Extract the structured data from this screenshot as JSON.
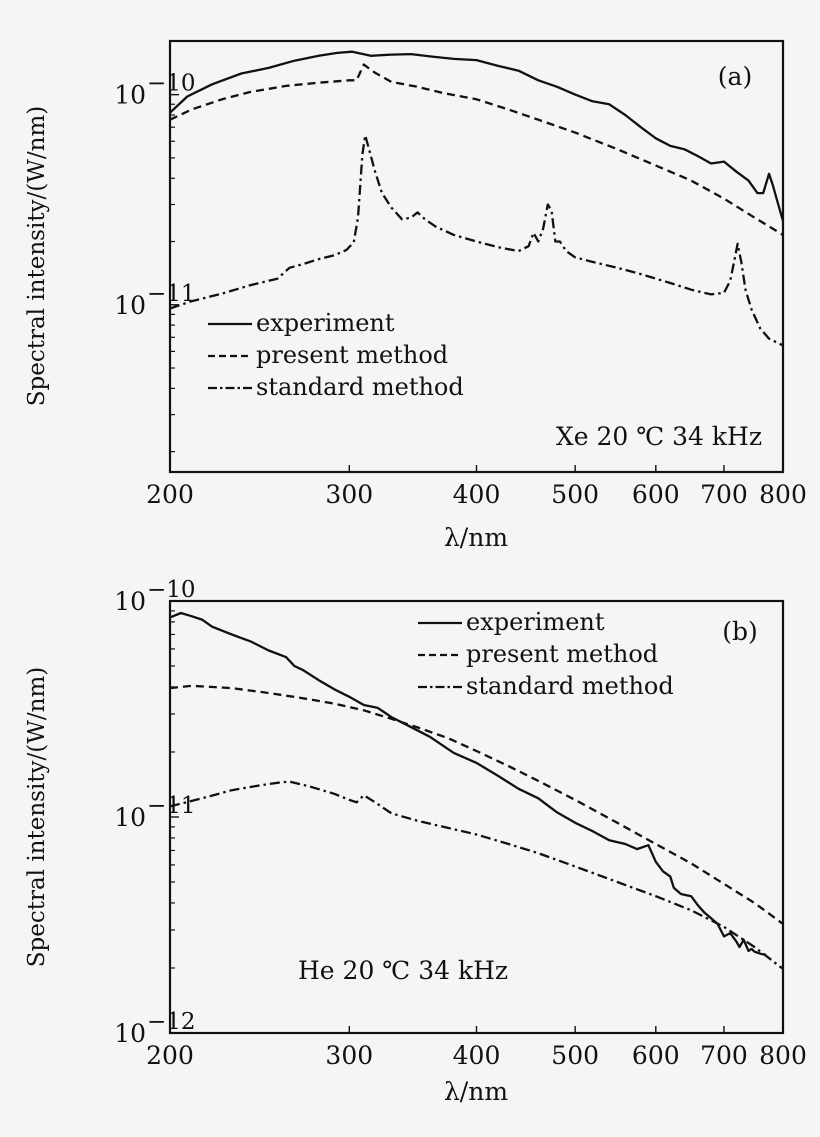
{
  "chart_data": [
    {
      "type": "line",
      "panel_label": "(a)",
      "annotation": "Xe 20 ℃ 34 kHz",
      "xlabel": "λ/nm",
      "ylabel": "Spectral intensity/(W/nm)",
      "xscale": "log",
      "yscale": "log",
      "xlim": [
        200,
        800
      ],
      "ylim": [
        1.6e-12,
        1.8e-10
      ],
      "x_ticks": [
        200,
        300,
        400,
        500,
        600,
        700,
        800
      ],
      "x_tick_labels": [
        "200",
        "300",
        "400",
        "500",
        "600",
        "700",
        "800"
      ],
      "y_ticks": [
        1e-11,
        1e-10
      ],
      "y_tick_labels": [
        {
          "base": "10",
          "exp": "−11"
        },
        {
          "base": "10",
          "exp": "−10"
        }
      ],
      "legend_position": "lower-left",
      "series": [
        {
          "name": "experiment",
          "style": "solid",
          "points": [
            [
              200,
              8.2e-11
            ],
            [
              208,
              9.8e-11
            ],
            [
              220,
              1.12e-10
            ],
            [
              235,
              1.26e-10
            ],
            [
              250,
              1.34e-10
            ],
            [
              265,
              1.45e-10
            ],
            [
              280,
              1.53e-10
            ],
            [
              292,
              1.58e-10
            ],
            [
              302,
              1.6e-10
            ],
            [
              315,
              1.53e-10
            ],
            [
              330,
              1.55e-10
            ],
            [
              345,
              1.56e-10
            ],
            [
              360,
              1.52e-10
            ],
            [
              380,
              1.48e-10
            ],
            [
              400,
              1.46e-10
            ],
            [
              420,
              1.37e-10
            ],
            [
              440,
              1.3e-10
            ],
            [
              460,
              1.17e-10
            ],
            [
              480,
              1.09e-10
            ],
            [
              500,
              1e-10
            ],
            [
              520,
              9.3e-11
            ],
            [
              540,
              9e-11
            ],
            [
              560,
              8e-11
            ],
            [
              580,
              7e-11
            ],
            [
              600,
              6.2e-11
            ],
            [
              620,
              5.7e-11
            ],
            [
              640,
              5.5e-11
            ],
            [
              660,
              5.1e-11
            ],
            [
              680,
              4.7e-11
            ],
            [
              700,
              4.8e-11
            ],
            [
              720,
              4.3e-11
            ],
            [
              740,
              3.9e-11
            ],
            [
              755,
              3.4e-11
            ],
            [
              765,
              3.4e-11
            ],
            [
              775,
              4.2e-11
            ],
            [
              782,
              3.7e-11
            ],
            [
              790,
              3.1e-11
            ],
            [
              800,
              2.5e-11
            ]
          ]
        },
        {
          "name": "present method",
          "style": "dashed",
          "points": [
            [
              200,
              7.6e-11
            ],
            [
              210,
              8.5e-11
            ],
            [
              225,
              9.5e-11
            ],
            [
              240,
              1.03e-10
            ],
            [
              260,
              1.1e-10
            ],
            [
              280,
              1.14e-10
            ],
            [
              300,
              1.17e-10
            ],
            [
              305,
              1.17e-10
            ],
            [
              310,
              1.39e-10
            ],
            [
              318,
              1.27e-10
            ],
            [
              330,
              1.15e-10
            ],
            [
              350,
              1.09e-10
            ],
            [
              370,
              1.02e-10
            ],
            [
              400,
              9.5e-11
            ],
            [
              430,
              8.5e-11
            ],
            [
              460,
              7.6e-11
            ],
            [
              500,
              6.6e-11
            ],
            [
              550,
              5.5e-11
            ],
            [
              600,
              4.6e-11
            ],
            [
              650,
              3.9e-11
            ],
            [
              700,
              3.2e-11
            ],
            [
              750,
              2.6e-11
            ],
            [
              800,
              2.15e-11
            ]
          ]
        },
        {
          "name": "standard method",
          "style": "dashdot",
          "points": [
            [
              200,
              9.6e-12
            ],
            [
              210,
              1.04e-11
            ],
            [
              225,
              1.13e-11
            ],
            [
              240,
              1.24e-11
            ],
            [
              255,
              1.33e-11
            ],
            [
              262,
              1.5e-11
            ],
            [
              270,
              1.56e-11
            ],
            [
              280,
              1.65e-11
            ],
            [
              290,
              1.72e-11
            ],
            [
              298,
              1.82e-11
            ],
            [
              303,
              1.98e-11
            ],
            [
              306,
              2.6e-11
            ],
            [
              309,
              5.2e-11
            ],
            [
              311,
              6.4e-11
            ],
            [
              314,
              5.4e-11
            ],
            [
              318,
              4.3e-11
            ],
            [
              323,
              3.4e-11
            ],
            [
              330,
              2.9e-11
            ],
            [
              338,
              2.55e-11
            ],
            [
              345,
              2.6e-11
            ],
            [
              350,
              2.75e-11
            ],
            [
              356,
              2.55e-11
            ],
            [
              365,
              2.35e-11
            ],
            [
              380,
              2.15e-11
            ],
            [
              400,
              2e-11
            ],
            [
              420,
              1.88e-11
            ],
            [
              440,
              1.8e-11
            ],
            [
              450,
              1.9e-11
            ],
            [
              455,
              2.2e-11
            ],
            [
              460,
              2e-11
            ],
            [
              465,
              2.3e-11
            ],
            [
              470,
              3e-11
            ],
            [
              474,
              2.8e-11
            ],
            [
              478,
              2e-11
            ],
            [
              483,
              2e-11
            ],
            [
              490,
              1.8e-11
            ],
            [
              500,
              1.68e-11
            ],
            [
              520,
              1.6e-11
            ],
            [
              550,
              1.5e-11
            ],
            [
              580,
              1.4e-11
            ],
            [
              620,
              1.27e-11
            ],
            [
              650,
              1.18e-11
            ],
            [
              680,
              1.12e-11
            ],
            [
              700,
              1.14e-11
            ],
            [
              710,
              1.3e-11
            ],
            [
              718,
              1.7e-11
            ],
            [
              722,
              1.95e-11
            ],
            [
              728,
              1.6e-11
            ],
            [
              735,
              1.18e-11
            ],
            [
              745,
              9.5e-12
            ],
            [
              760,
              7.7e-12
            ],
            [
              775,
              6.9e-12
            ],
            [
              790,
              6.6e-12
            ],
            [
              800,
              6.4e-12
            ]
          ]
        }
      ]
    },
    {
      "type": "line",
      "panel_label": "(b)",
      "annotation": "He 20 ℃ 34 kHz",
      "xlabel": "λ/nm",
      "ylabel": "Spectral intensity/(W/nm)",
      "xscale": "log",
      "yscale": "log",
      "xlim": [
        200,
        800
      ],
      "ylim": [
        1e-12,
        1e-10
      ],
      "x_ticks": [
        200,
        300,
        400,
        500,
        600,
        700,
        800
      ],
      "x_tick_labels": [
        "200",
        "300",
        "400",
        "500",
        "600",
        "700",
        "800"
      ],
      "y_ticks": [
        1e-12,
        1e-11,
        1e-10
      ],
      "y_tick_labels": [
        {
          "base": "10",
          "exp": "−12"
        },
        {
          "base": "10",
          "exp": "−11"
        },
        {
          "base": "10",
          "exp": "−10"
        }
      ],
      "legend_position": "top-right",
      "series": [
        {
          "name": "experiment",
          "style": "solid",
          "points": [
            [
              200,
              8.4e-11
            ],
            [
              205,
              8.8e-11
            ],
            [
              210,
              8.5e-11
            ],
            [
              215,
              8.2e-11
            ],
            [
              220,
              7.6e-11
            ],
            [
              230,
              7e-11
            ],
            [
              240,
              6.5e-11
            ],
            [
              250,
              5.9e-11
            ],
            [
              260,
              5.5e-11
            ],
            [
              265,
              5e-11
            ],
            [
              270,
              4.8e-11
            ],
            [
              280,
              4.3e-11
            ],
            [
              290,
              3.9e-11
            ],
            [
              300,
              3.6e-11
            ],
            [
              310,
              3.3e-11
            ],
            [
              320,
              3.2e-11
            ],
            [
              330,
              2.9e-11
            ],
            [
              340,
              2.7e-11
            ],
            [
              360,
              2.35e-11
            ],
            [
              380,
              1.98e-11
            ],
            [
              400,
              1.78e-11
            ],
            [
              420,
              1.55e-11
            ],
            [
              440,
              1.35e-11
            ],
            [
              460,
              1.22e-11
            ],
            [
              480,
              1.05e-11
            ],
            [
              500,
              9.4e-12
            ],
            [
              520,
              8.6e-12
            ],
            [
              540,
              7.8e-12
            ],
            [
              560,
              7.5e-12
            ],
            [
              575,
              7.1e-12
            ],
            [
              590,
              7.4e-12
            ],
            [
              600,
              6.2e-12
            ],
            [
              610,
              5.6e-12
            ],
            [
              620,
              5.3e-12
            ],
            [
              625,
              4.7e-12
            ],
            [
              635,
              4.4e-12
            ],
            [
              650,
              4.3e-12
            ],
            [
              660,
              3.9e-12
            ],
            [
              670,
              3.6e-12
            ],
            [
              680,
              3.4e-12
            ],
            [
              690,
              3.2e-12
            ],
            [
              700,
              2.8e-12
            ],
            [
              710,
              2.9e-12
            ],
            [
              720,
              2.65e-12
            ],
            [
              725,
              2.5e-12
            ],
            [
              732,
              2.7e-12
            ],
            [
              740,
              2.4e-12
            ],
            [
              745,
              2.45e-12
            ],
            [
              750,
              2.38e-12
            ],
            [
              760,
              2.33e-12
            ],
            [
              770,
              2.3e-12
            ]
          ]
        },
        {
          "name": "present method",
          "style": "dashed",
          "points": [
            [
              200,
              3.95e-11
            ],
            [
              210,
              4.05e-11
            ],
            [
              230,
              3.95e-11
            ],
            [
              250,
              3.75e-11
            ],
            [
              270,
              3.55e-11
            ],
            [
              290,
              3.35e-11
            ],
            [
              310,
              3.12e-11
            ],
            [
              330,
              2.85e-11
            ],
            [
              350,
              2.6e-11
            ],
            [
              375,
              2.32e-11
            ],
            [
              400,
              2.02e-11
            ],
            [
              430,
              1.72e-11
            ],
            [
              460,
              1.47e-11
            ],
            [
              500,
              1.2e-11
            ],
            [
              550,
              9.4e-12
            ],
            [
              600,
              7.5e-12
            ],
            [
              650,
              6.1e-12
            ],
            [
              700,
              4.9e-12
            ],
            [
              750,
              4e-12
            ],
            [
              800,
              3.2e-12
            ]
          ]
        },
        {
          "name": "standard method",
          "style": "dashdot",
          "points": [
            [
              200,
              1.12e-11
            ],
            [
              215,
              1.22e-11
            ],
            [
              230,
              1.33e-11
            ],
            [
              245,
              1.4e-11
            ],
            [
              255,
              1.44e-11
            ],
            [
              262,
              1.46e-11
            ],
            [
              275,
              1.38e-11
            ],
            [
              290,
              1.28e-11
            ],
            [
              300,
              1.2e-11
            ],
            [
              305,
              1.17e-11
            ],
            [
              310,
              1.26e-11
            ],
            [
              318,
              1.17e-11
            ],
            [
              330,
              1.04e-11
            ],
            [
              350,
              9.6e-12
            ],
            [
              375,
              8.9e-12
            ],
            [
              400,
              8.3e-12
            ],
            [
              430,
              7.5e-12
            ],
            [
              460,
              6.8e-12
            ],
            [
              500,
              5.9e-12
            ],
            [
              550,
              5e-12
            ],
            [
              600,
              4.3e-12
            ],
            [
              650,
              3.7e-12
            ],
            [
              700,
              3.1e-12
            ],
            [
              750,
              2.5e-12
            ],
            [
              800,
              1.98e-12
            ]
          ]
        }
      ]
    }
  ]
}
